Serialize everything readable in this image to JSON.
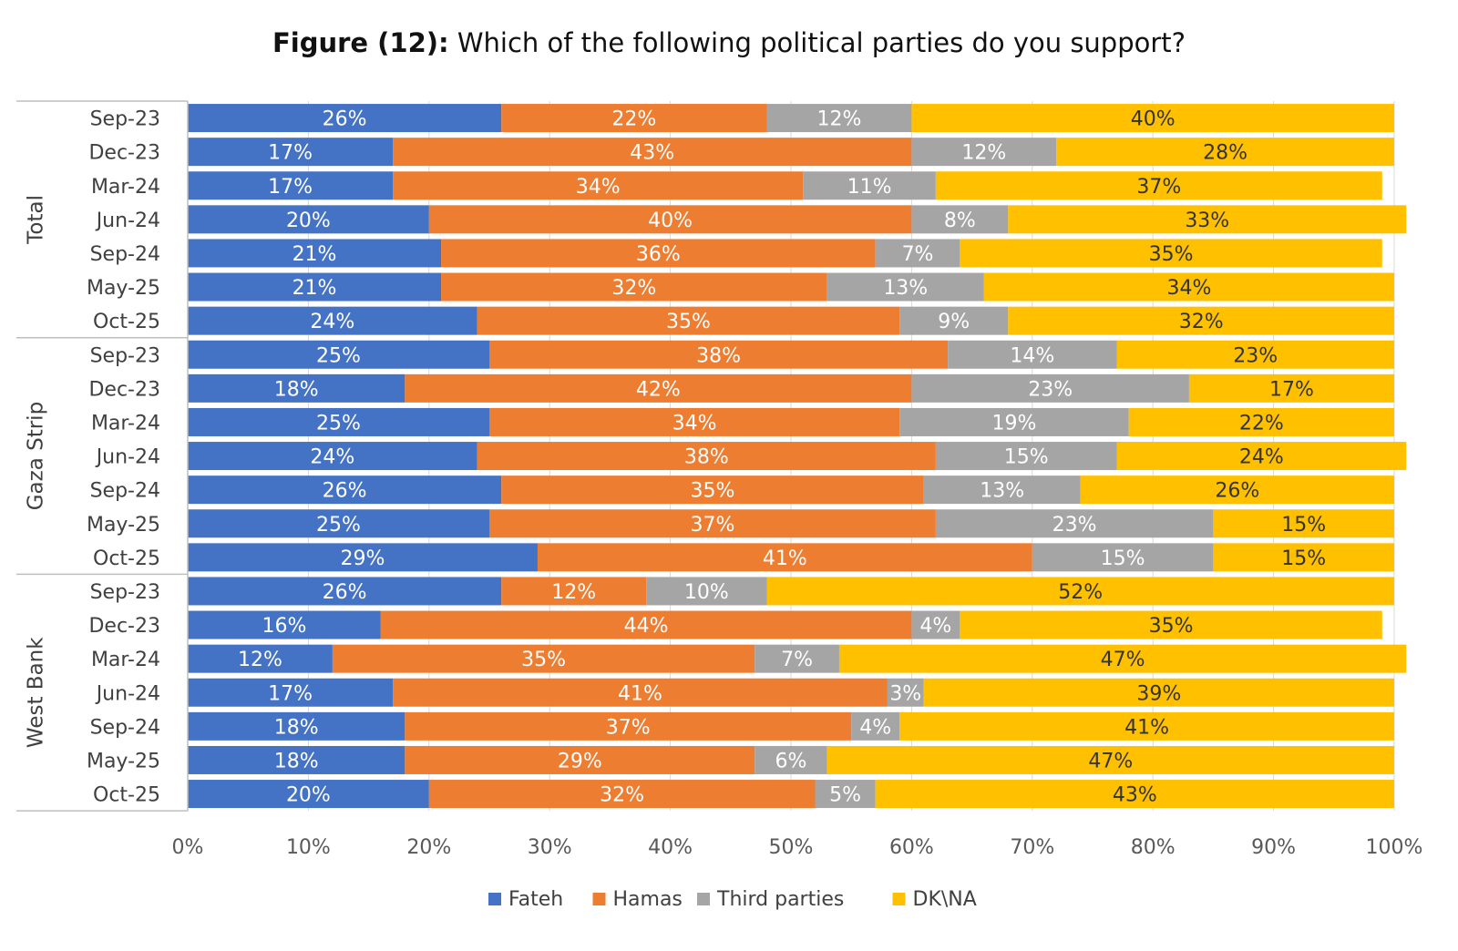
{
  "title": {
    "prefix": "Figure (12):",
    "text": " Which of the following political parties do you support?"
  },
  "chart_data": {
    "type": "bar",
    "orientation": "horizontal",
    "stacked": true,
    "percent_stacked": true,
    "xlim": [
      0,
      100
    ],
    "x_ticks": [
      "0%",
      "10%",
      "20%",
      "30%",
      "40%",
      "50%",
      "60%",
      "70%",
      "80%",
      "90%",
      "100%"
    ],
    "grid": true,
    "legend_position": "bottom",
    "groups": [
      {
        "name": "Total",
        "categories": [
          "Sep-23",
          "Dec-23",
          "Mar-24",
          "Jun-24",
          "Sep-24",
          "May-25",
          "Oct-25"
        ]
      },
      {
        "name": "Gaza Strip",
        "categories": [
          "Sep-23",
          "Dec-23",
          "Mar-24",
          "Jun-24",
          "Sep-24",
          "May-25",
          "Oct-25"
        ]
      },
      {
        "name": "West Bank",
        "categories": [
          "Sep-23",
          "Dec-23",
          "Mar-24",
          "Jun-24",
          "Sep-24",
          "May-25",
          "Oct-25"
        ]
      }
    ],
    "series": [
      {
        "name": "Fateh",
        "color": "#4472C4",
        "label_color": "#ffffff",
        "values": [
          26,
          17,
          17,
          20,
          21,
          21,
          24,
          25,
          18,
          25,
          24,
          26,
          25,
          29,
          26,
          16,
          12,
          17,
          18,
          18,
          20
        ]
      },
      {
        "name": "Hamas",
        "color": "#ED7D31",
        "label_color": "#ffffff",
        "values": [
          22,
          43,
          34,
          40,
          36,
          32,
          35,
          38,
          42,
          34,
          38,
          35,
          37,
          41,
          12,
          44,
          35,
          41,
          37,
          29,
          32
        ]
      },
      {
        "name": "Third parties",
        "color": "#A5A5A5",
        "label_color": "#ffffff",
        "values": [
          12,
          12,
          11,
          8,
          7,
          13,
          9,
          14,
          23,
          19,
          15,
          13,
          23,
          15,
          10,
          4,
          7,
          3,
          4,
          6,
          5
        ]
      },
      {
        "name": "DK\\NA",
        "color": "#FFC000",
        "label_color": "#333333",
        "values": [
          40,
          28,
          37,
          33,
          35,
          34,
          32,
          23,
          17,
          22,
          24,
          26,
          15,
          15,
          52,
          35,
          47,
          39,
          41,
          47,
          43
        ]
      }
    ]
  }
}
